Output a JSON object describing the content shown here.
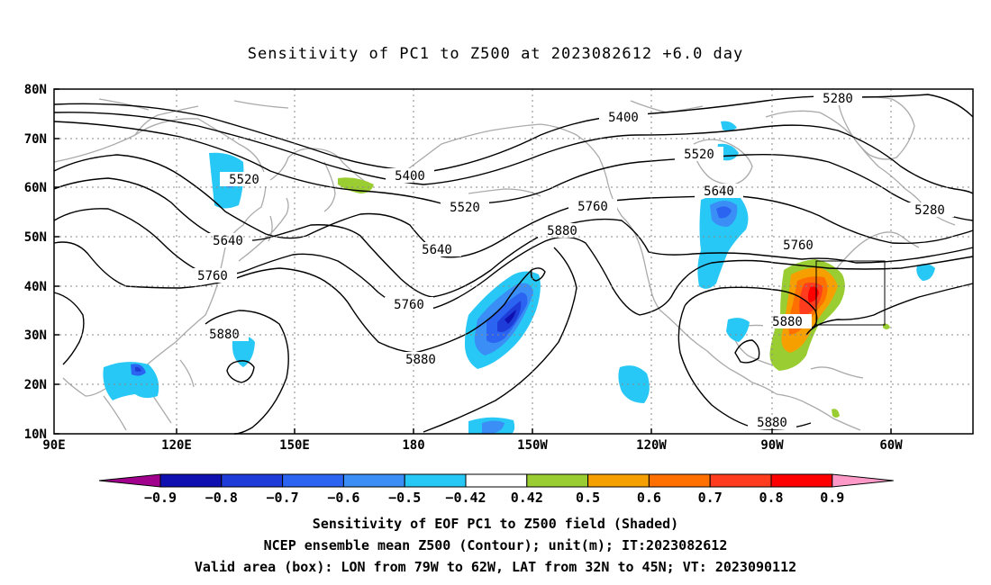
{
  "title": "Sensitivity of PC1 to Z500 at 2023082612 +6.0 day",
  "axes": {
    "lat_labels": [
      "80N",
      "70N",
      "60N",
      "50N",
      "40N",
      "30N",
      "20N",
      "10N"
    ],
    "lon_labels": [
      "90E",
      "120E",
      "150E",
      "180",
      "150W",
      "120W",
      "90W",
      "60W"
    ]
  },
  "contours": [
    "5280",
    "5400",
    "5520",
    "5640",
    "5760",
    "5880"
  ],
  "colorbar": {
    "labels": [
      "-0.9",
      "-0.8",
      "-0.7",
      "-0.6",
      "-0.5",
      "-0.42",
      "0.42",
      "0.5",
      "0.6",
      "0.7",
      "0.8",
      "0.9"
    ],
    "colors": [
      "#a0008c",
      "#1010b0",
      "#1e3cd8",
      "#2a64f0",
      "#3a8ef5",
      "#27c8f5",
      "#ffffff",
      "#9acd32",
      "#f5a000",
      "#ff7000",
      "#ff3c1e",
      "#ff0000",
      "#ff9ac8"
    ]
  },
  "footer": {
    "line1": "Sensitivity of EOF PC1 to Z500 field (Shaded)",
    "line2": "NCEP ensemble mean Z500 (Contour); unit(m); IT:2023082612",
    "line3": "Valid area (box): LON from 79W to 62W, LAT from 32N to 45N; VT: 2023090112"
  },
  "colors": {
    "coast": "#aaaaaa",
    "contour": "#000000",
    "grid": "#888888"
  }
}
